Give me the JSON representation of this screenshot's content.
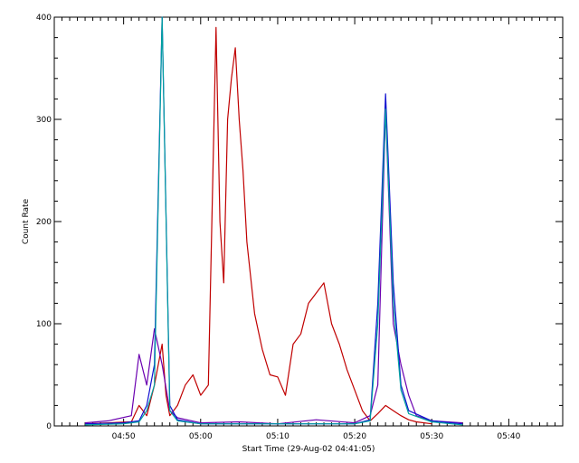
{
  "chart_data": {
    "type": "line",
    "title": "",
    "xlabel": "Start Time (29-Aug-02 04:41:05)",
    "ylabel": "Count Rate",
    "x_unit": "time of day (HH:MM)",
    "xlim": [
      "04:41",
      "05:47"
    ],
    "ylim": [
      0,
      400
    ],
    "x_tick_labels": [
      "04:50",
      "05:00",
      "05:10",
      "05:20",
      "05:30",
      "05:40"
    ],
    "y_tick_labels": [
      "0",
      "100",
      "200",
      "300",
      "400"
    ],
    "grid": false,
    "legend": "none",
    "series": [
      {
        "color": "#c00000",
        "x": [
          "04:45",
          "04:48",
          "04:51",
          "04:52",
          "04:53",
          "04:54",
          "04:55",
          "04:55:30",
          "04:56",
          "04:57",
          "04:58",
          "04:59",
          "05:00",
          "05:01",
          "05:02",
          "05:02:30",
          "05:03",
          "05:03:30",
          "05:04",
          "05:04:30",
          "05:05",
          "05:05:30",
          "05:06",
          "05:07",
          "05:08",
          "05:09",
          "05:10",
          "05:11",
          "05:12",
          "05:13",
          "05:14",
          "05:15",
          "05:16",
          "05:17",
          "05:18",
          "05:19",
          "05:20",
          "05:21",
          "05:22",
          "05:23",
          "05:24",
          "05:25",
          "05:26",
          "05:27",
          "05:28",
          "05:30"
        ],
        "y": [
          2,
          3,
          4,
          20,
          10,
          40,
          80,
          30,
          10,
          20,
          40,
          50,
          30,
          40,
          390,
          200,
          140,
          300,
          340,
          370,
          300,
          250,
          180,
          110,
          75,
          50,
          48,
          30,
          80,
          90,
          120,
          130,
          140,
          100,
          80,
          55,
          35,
          15,
          5,
          12,
          20,
          15,
          10,
          6,
          4,
          2
        ]
      },
      {
        "color": "#6a00b0",
        "x": [
          "04:45",
          "04:48",
          "04:51",
          "04:52",
          "04:53",
          "04:54",
          "04:55",
          "04:56",
          "04:57",
          "05:00",
          "05:05",
          "05:10",
          "05:15",
          "05:20",
          "05:22",
          "05:23",
          "05:24",
          "05:25",
          "05:26",
          "05:27",
          "05:28",
          "05:30",
          "05:34"
        ],
        "y": [
          3,
          5,
          10,
          70,
          40,
          95,
          60,
          15,
          8,
          3,
          4,
          2,
          6,
          3,
          10,
          40,
          310,
          100,
          60,
          30,
          10,
          5,
          3
        ]
      },
      {
        "color": "#1010d0",
        "x": [
          "04:45",
          "04:50",
          "04:52",
          "04:53",
          "04:54",
          "04:55",
          "04:56",
          "04:57",
          "05:00",
          "05:10",
          "05:20",
          "05:22",
          "05:23",
          "05:24",
          "05:25",
          "05:26",
          "05:27",
          "05:30",
          "05:34"
        ],
        "y": [
          2,
          3,
          5,
          20,
          60,
          400,
          20,
          6,
          2,
          2,
          2,
          6,
          120,
          325,
          140,
          40,
          15,
          5,
          2
        ]
      },
      {
        "color": "#00a0a0",
        "x": [
          "04:45",
          "04:50",
          "04:52",
          "04:53",
          "04:54",
          "04:55",
          "04:56",
          "04:57",
          "05:00",
          "05:10",
          "05:20",
          "05:22",
          "05:23",
          "05:24",
          "05:25",
          "05:26",
          "05:27",
          "05:30",
          "05:34"
        ],
        "y": [
          1,
          2,
          4,
          15,
          40,
          400,
          15,
          5,
          2,
          2,
          2,
          5,
          100,
          310,
          120,
          35,
          12,
          4,
          1
        ]
      }
    ]
  }
}
